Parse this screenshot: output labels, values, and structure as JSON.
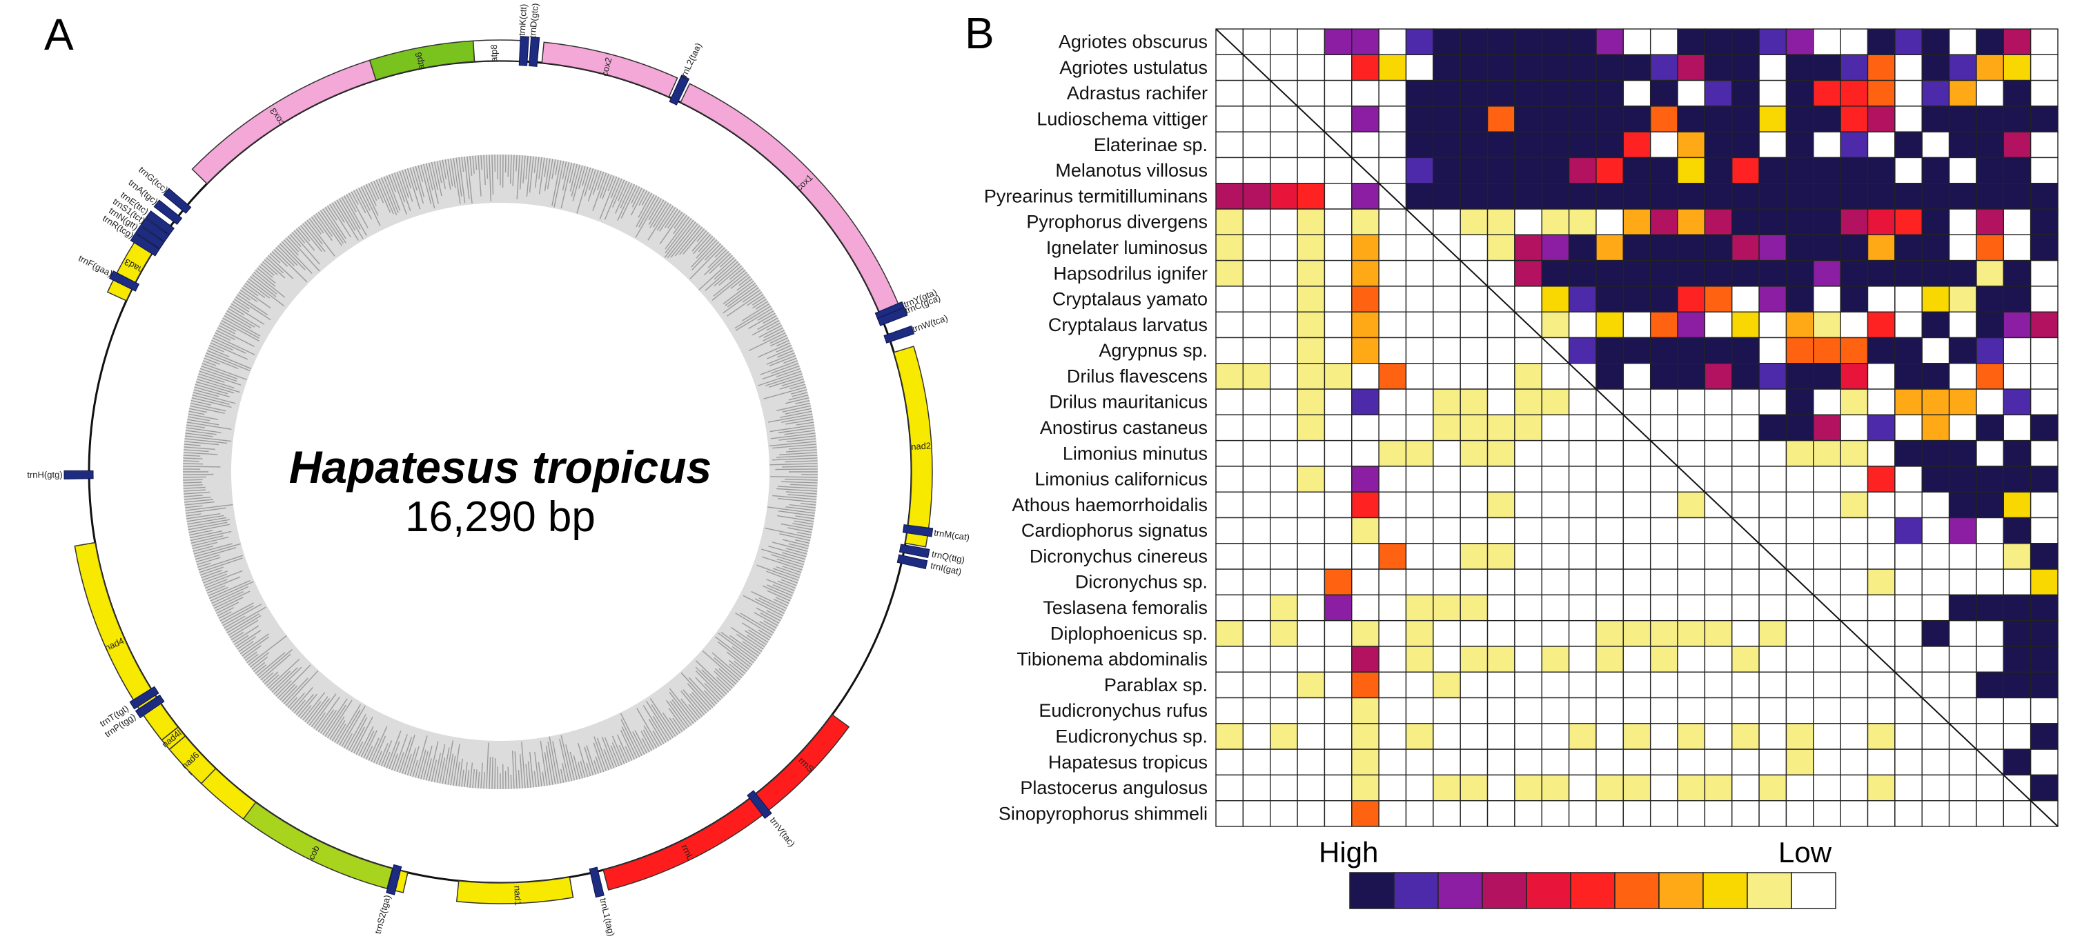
{
  "panel_a": {
    "letter": "A",
    "title": "Hapatesus tropicus",
    "subtitle": "16,290 bp",
    "genes": [
      {
        "name": "cox3",
        "start": -45.5,
        "end": -17.6,
        "color": "#f4a8d8"
      },
      {
        "name": "atp6",
        "start": -17.6,
        "end": -3.6,
        "color": "#7ac31e"
      },
      {
        "name": "atp8",
        "start": -3.6,
        "end": 2.7,
        "color": "#ffffff"
      },
      {
        "name": "cox2",
        "start": 5.8,
        "end": 24.2,
        "color": "#f4a8d8"
      },
      {
        "name": "cox1",
        "start": 26.0,
        "end": 67.1,
        "color": "#f4a8d8"
      },
      {
        "name": "nad2",
        "start": 73.1,
        "end": 100.0,
        "color": "#f7ea00"
      },
      {
        "name": "nad5",
        "start": 193.0,
        "end": 258.5,
        "color": "#f7ea00"
      },
      {
        "name": "nad4",
        "start": 231.6,
        "end": 260.1,
        "color": "#f7ea00"
      },
      {
        "name": "nad4l",
        "start": 230.0,
        "end": 231.6,
        "color": "#f7ea00"
      },
      {
        "name": "nad6",
        "start": 223.8,
        "end": 230.0,
        "color": "#f7ea00"
      },
      {
        "name": "cob",
        "start": 195.2,
        "end": 216.5,
        "color": "#a8d41e"
      },
      {
        "name": "nad1",
        "start": 170.3,
        "end": 185.8,
        "color": "#f7ea00"
      },
      {
        "name": "rrnL",
        "start": 142.6,
        "end": 165.5,
        "color": "#ff1c1c"
      },
      {
        "name": "rrnS",
        "start": 126.2,
        "end": 141.6,
        "color": "#ff1c1c"
      },
      {
        "name": "nad3",
        "start": -65.4,
        "end": -54.5,
        "color": "#f7ea00"
      }
    ],
    "trnas": [
      {
        "name": "trnD(gtc)",
        "angle": 4.6
      },
      {
        "name": "trnK(ctt)",
        "angle": 3.2
      },
      {
        "name": "trnL2(taa)",
        "angle": 25.1
      },
      {
        "name": "trnW(tca)",
        "angle": 71.0
      },
      {
        "name": "trnY(gta)",
        "angle": 67.6
      },
      {
        "name": "trnC(gca)",
        "angle": 68.4
      },
      {
        "name": "trnM(cat)",
        "angle": 98.0
      },
      {
        "name": "trnQ(ttg)",
        "angle": 100.8
      },
      {
        "name": "trnI(gat)",
        "angle": 102.3
      },
      {
        "name": "trnV(tac)",
        "angle": 142.1
      },
      {
        "name": "trnL1(tag)",
        "angle": 166.8
      },
      {
        "name": "trnS2(tga)",
        "angle": 194.6
      },
      {
        "name": "trnP(tgg)",
        "angle": 236.2
      },
      {
        "name": "trnT(tgt)",
        "angle": 237.6
      },
      {
        "name": "trnH(gtg)",
        "angle": 269.6
      },
      {
        "name": "trnF(gaa)",
        "angle": 296.9
      },
      {
        "name": "trnE(ttc)",
        "angle": 306.2
      },
      {
        "name": "trnS1(tct)",
        "angle": 305.0
      },
      {
        "name": "trnN(gtt)",
        "angle": 303.8
      },
      {
        "name": "trnR(tcg)",
        "angle": 302.6
      },
      {
        "name": "trnA(tgc)",
        "angle": 308.0
      },
      {
        "name": "trnG(tcc)",
        "angle": 310.0
      }
    ]
  },
  "panel_b": {
    "letter": "B",
    "legend_high": "High",
    "legend_low": "Low",
    "palette": [
      "#1c1450",
      "#4d2aaa",
      "#8b1ea2",
      "#b2125f",
      "#e8143a",
      "#ff2222",
      "#ff6211",
      "#ffa916",
      "#f8d800",
      "#f7ee86",
      "#ffffff"
    ],
    "species": [
      "Agriotes obscurus",
      "Agriotes ustulatus",
      "Adrastus rachifer",
      "Ludioschema vittiger",
      "Elaterinae sp.",
      "Melanotus villosus",
      "Pyrearinus termitilluminans",
      "Pyrophorus divergens",
      "Ignelater luminosus",
      "Hapsodrilus ignifer",
      "Cryptalaus yamato",
      "Cryptalaus larvatus",
      "Agrypnus sp.",
      "Drilus flavescens",
      "Drilus mauritanicus",
      "Anostirus castaneus",
      "Limonius minutus",
      "Limonius californicus",
      "Athous haemorrhoidalis",
      "Cardiophorus signatus",
      "Dicronychus cinereus",
      "Dicronychus sp.",
      "Teslasena femoralis",
      "Diplophoenicus sp.",
      "Tibionema abdominalis",
      "Parablax sp.",
      "Eudicronychus rufus",
      "Eudicronychus sp.",
      "Hapatesus tropicus",
      "Plastocerus angulosus",
      "Sinopyrophorus shimmeli"
    ],
    "matrix_codes": [
      "   2a 1000000a  0001a  010 03 ",
      "    58 000000001300 0016 0178 6",
      "      00000000 0 10 0556 17 0 1",
      "    2 000600000600080053 00",
      "      000000005 700 0 1 0 003 3",
      "      100000350080500000 0 00 96",
      "3345 a0000000000000000000000000",
      "9  9 9  99 99 7b7b00003450 3 0",
      "9  9 7   93207000032000700 6 00",
      "9  9 7    3000000000020000090 6",
      "   9 6     8100056 20 0  8900  ",
      "   9 7     9 8 62 8 79 5 0 023 ",
      "   9 7      1000000 66600 01  ",
      "99 99 6    9 0 00301004 00 6  ",
      "   9 1  99 99       0 9 777 1 0",
      "   9 0  9999       003 1 7 0 0 ",
      "    0 99 99         999 000 0  ",
      "   9 2                 5 00000  ",
      "     5    9      9    9   008   ",
      "     9                  1 2 0 1 ",
      "      6  99                 900",
      "    6                  9     800",
      "  9 2  999                0000",
      "9 9  9 9      99999 9    0  00 ",
      "     3 9 99 9 9 9  9        000",
      "   9 6  9                  0000",
      "     9                        50",
      "9 9  9 9     9 9 9 9 9  9    00",
      "     9               9     00 ",
      "     9  99 99 99 99 9   9  ",
      "     6                       "
    ]
  }
}
